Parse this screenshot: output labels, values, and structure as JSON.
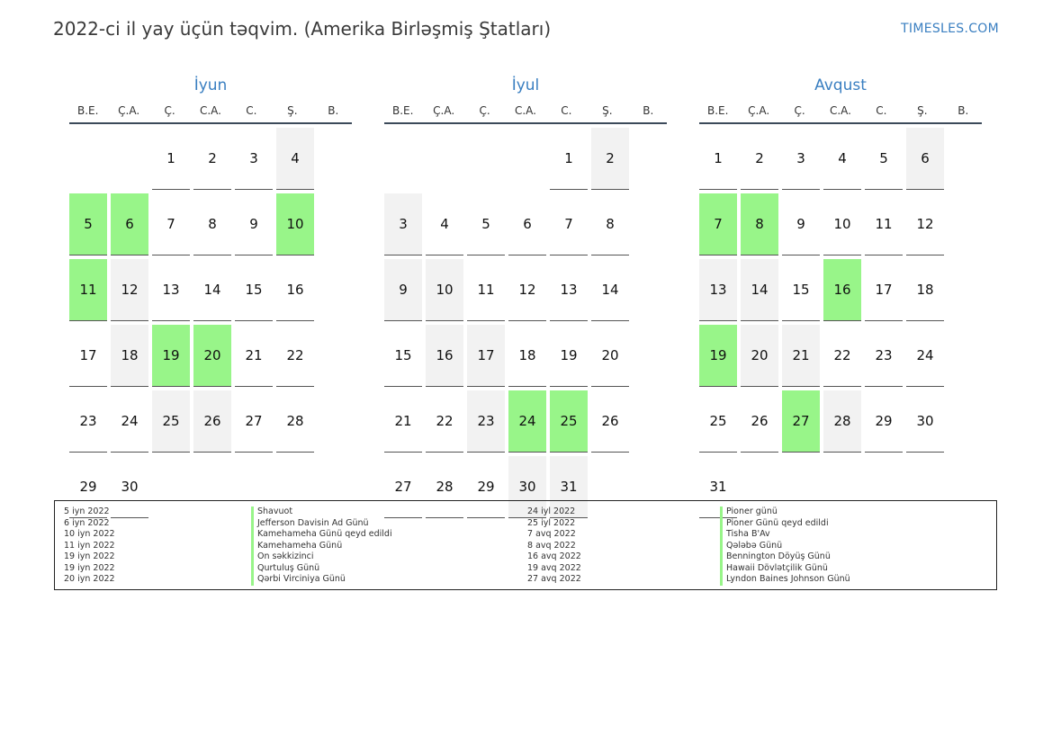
{
  "title": "2022-ci il yay üçün təqvim. (Amerika Birləşmiş Ştatları)",
  "brand": "TIMESLES.COM",
  "colors": {
    "accent": "#3a7fc1",
    "holiday": "#98f589",
    "weekend": "#f2f2f2"
  },
  "weekdays": [
    "B.E.",
    "Ç.A.",
    "Ç.",
    "C.A.",
    "C.",
    "Ş.",
    "B."
  ],
  "months": [
    {
      "name": "İyun",
      "offset": 2,
      "days": 30,
      "holidays": [
        5,
        6,
        10,
        11,
        19,
        20
      ]
    },
    {
      "name": "İyul",
      "offset": 4,
      "days": 31,
      "holidays": [
        24,
        25
      ]
    },
    {
      "name": "Avqust",
      "offset": 0,
      "days": 31,
      "holidays": [
        7,
        8,
        16,
        19,
        27
      ]
    }
  ],
  "legend": {
    "col1_dates": [
      "5 iyn 2022",
      "6 iyn 2022",
      "10 iyn 2022",
      "11 iyn 2022",
      "19 iyn 2022",
      "19 iyn 2022",
      "20 iyn 2022"
    ],
    "col1_names": [
      "Shavuot",
      "Jefferson Davisin Ad Günü",
      "Kamehameha Günü qeyd edildi",
      "Kamehameha Günü",
      "On səkkizinci",
      "Qurtuluş Günü",
      "Qərbi Virciniya Günü"
    ],
    "col2_dates": [
      "24 iyl 2022",
      "25 iyl 2022",
      "7 avq 2022",
      "8 avq 2022",
      "16 avq 2022",
      "19 avq 2022",
      "27 avq 2022"
    ],
    "col2_names": [
      "Pioner günü",
      "Pioner Günü qeyd edildi",
      "Tisha B'Av",
      "Qələbə Günü",
      "Bennington Döyüş Günü",
      "Hawaii Dövlətçilik Günü",
      "Lyndon Baines Johnson Günü"
    ]
  }
}
